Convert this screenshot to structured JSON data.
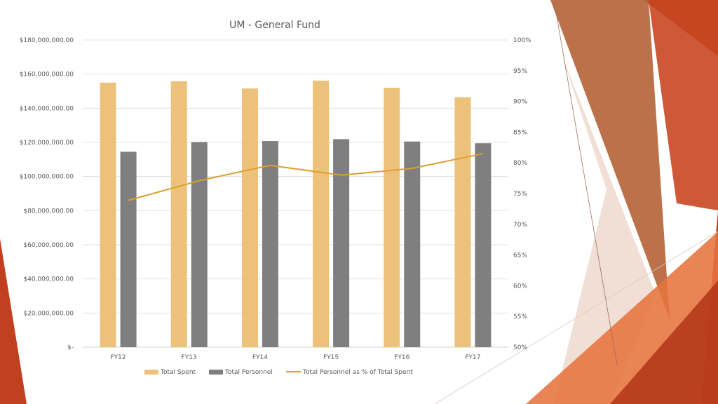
{
  "colors": {
    "total_spent": "#ecc27b",
    "total_personnel": "#7f7f7f",
    "pct_line": "#dc9f31",
    "gridline": "#e0e0e0",
    "text": "#595959"
  },
  "chart_data": {
    "type": "bar",
    "title": "UM - General Fund",
    "categories": [
      "FY12",
      "FY13",
      "FY14",
      "FY15",
      "FY16",
      "FY17"
    ],
    "series": [
      {
        "name": "Total Spent",
        "axis": "left",
        "type": "bar",
        "values": [
          155000000,
          155800000,
          151600000,
          156200000,
          152000000,
          146500000
        ]
      },
      {
        "name": "Total Personnel",
        "axis": "left",
        "type": "bar",
        "values": [
          114500000,
          120200000,
          120800000,
          121900000,
          120500000,
          119500000
        ]
      },
      {
        "name": "Total Personnel as % of Total Spent",
        "axis": "right",
        "type": "line",
        "values": [
          0.739,
          0.771,
          0.796,
          0.78,
          0.791,
          0.815
        ]
      }
    ],
    "y_left": {
      "ylim": [
        0,
        180000000
      ],
      "tick_labels": [
        "$-",
        "$20,000,000.00",
        "$40,000,000.00",
        "$60,000,000.00",
        "$80,000,000.00",
        "$100,000,000.00",
        "$120,000,000.00",
        "$140,000,000.00",
        "$160,000,000.00",
        "$180,000,000.00"
      ]
    },
    "y_right": {
      "ylim": [
        0.5,
        1.0
      ],
      "tick_labels": [
        "50%",
        "55%",
        "60%",
        "65%",
        "70%",
        "75%",
        "80%",
        "85%",
        "90%",
        "95%",
        "100%"
      ]
    },
    "grid": true,
    "legend_position": "bottom"
  }
}
